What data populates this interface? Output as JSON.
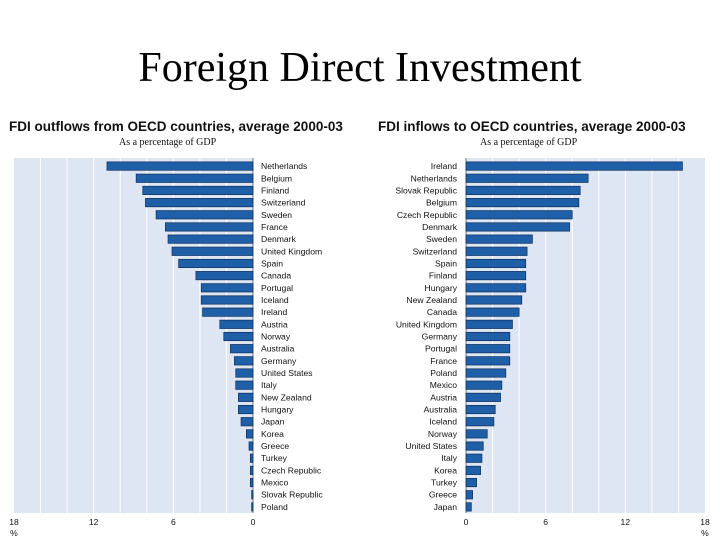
{
  "slide": {
    "title": "Foreign Direct Investment"
  },
  "chart_data": [
    {
      "type": "bar",
      "orientation": "horizontal",
      "direction": "right-to-left",
      "title": "FDI outflows from OECD countries, average 2000-03",
      "subtitle": "As a percentage of GDP",
      "xlim": [
        0,
        18
      ],
      "xticks": [
        "18",
        "12",
        "6",
        "0"
      ],
      "x_unit_label": "%",
      "grid": true,
      "categories": [
        "Netherlands",
        "Belgium",
        "Finland",
        "Switzerland",
        "Sweden",
        "France",
        "Denmark",
        "United Kingdom",
        "Spain",
        "Canada",
        "Portugal",
        "Iceland",
        "Ireland",
        "Austria",
        "Norway",
        "Australia",
        "Germany",
        "United States",
        "Italy",
        "New Zealand",
        "Hungary",
        "Japan",
        "Korea",
        "Greece",
        "Turkey",
        "Czech Republic",
        "Mexico",
        "Slovak Republic",
        "Poland"
      ],
      "values": [
        11.0,
        8.8,
        8.3,
        8.1,
        7.3,
        6.6,
        6.4,
        6.1,
        5.6,
        4.3,
        3.9,
        3.9,
        3.8,
        2.5,
        2.2,
        1.7,
        1.4,
        1.3,
        1.3,
        1.1,
        1.1,
        0.9,
        0.5,
        0.3,
        0.2,
        0.2,
        0.2,
        0.1,
        0.1
      ]
    },
    {
      "type": "bar",
      "orientation": "horizontal",
      "direction": "left-to-right",
      "title": "FDI inflows to OECD countries, average 2000-03",
      "subtitle": "As a percentage of GDP",
      "xlim": [
        0,
        18
      ],
      "xticks": [
        "0",
        "6",
        "12",
        "18"
      ],
      "x_unit_label": "%",
      "grid": true,
      "categories": [
        "Ireland",
        "Netherlands",
        "Slovak Republic",
        "Belgium",
        "Czech Republic",
        "Denmark",
        "Sweden",
        "Switzerland",
        "Spain",
        "Finland",
        "Hungary",
        "New Zealand",
        "Canada",
        "United Kingdom",
        "Germany",
        "Portugal",
        "France",
        "Poland",
        "Mexico",
        "Austria",
        "Australia",
        "Iceland",
        "Norway",
        "United States",
        "Italy",
        "Korea",
        "Turkey",
        "Greece",
        "Japan"
      ],
      "values": [
        16.3,
        9.2,
        8.6,
        8.5,
        8.0,
        7.8,
        5.0,
        4.6,
        4.5,
        4.5,
        4.5,
        4.2,
        4.0,
        3.5,
        3.3,
        3.3,
        3.3,
        3.0,
        2.7,
        2.6,
        2.2,
        2.1,
        1.6,
        1.3,
        1.2,
        1.1,
        0.8,
        0.5,
        0.4
      ]
    }
  ]
}
